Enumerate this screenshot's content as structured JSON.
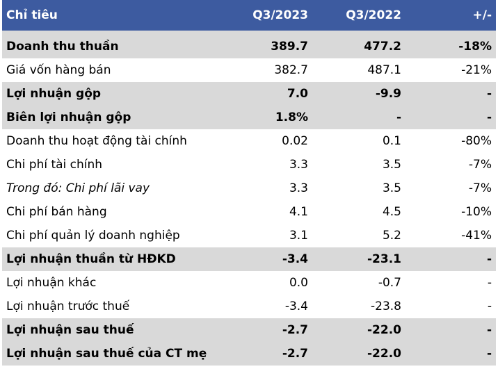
{
  "header": {
    "label": "Chỉ tiêu",
    "col1": "Q3/2023",
    "col2": "Q3/2022",
    "col3": "+/-"
  },
  "rows": [
    {
      "label": "Doanh thu thuần",
      "v1": "389.7",
      "v2": "477.2",
      "v3": "-18%",
      "bold": true,
      "shade": true,
      "italic": false
    },
    {
      "label": "Giá vốn hàng bán",
      "v1": "382.7",
      "v2": "487.1",
      "v3": "-21%",
      "bold": false,
      "shade": false,
      "italic": false
    },
    {
      "label": "Lợi nhuận gộp",
      "v1": "7.0",
      "v2": "-9.9",
      "v3": "-",
      "bold": true,
      "shade": true,
      "italic": false
    },
    {
      "label": "Biên lợi nhuận gộp",
      "v1": "1.8%",
      "v2": "-",
      "v3": "-",
      "bold": true,
      "shade": true,
      "italic": false
    },
    {
      "label": "Doanh thu hoạt động tài chính",
      "v1": "0.02",
      "v2": "0.1",
      "v3": "-80%",
      "bold": false,
      "shade": false,
      "italic": false
    },
    {
      "label": "Chi phí tài chính",
      "v1": "3.3",
      "v2": "3.5",
      "v3": "-7%",
      "bold": false,
      "shade": false,
      "italic": false
    },
    {
      "label": "Trong đó: Chi phí lãi vay",
      "v1": "3.3",
      "v2": "3.5",
      "v3": "-7%",
      "bold": false,
      "shade": false,
      "italic": true
    },
    {
      "label": "Chi phí bán hàng",
      "v1": "4.1",
      "v2": "4.5",
      "v3": "-10%",
      "bold": false,
      "shade": false,
      "italic": false
    },
    {
      "label": "Chi phí quản lý doanh nghiệp",
      "v1": "3.1",
      "v2": "5.2",
      "v3": "-41%",
      "bold": false,
      "shade": false,
      "italic": false
    },
    {
      "label": "Lợi nhuận thuần từ HĐKD",
      "v1": "-3.4",
      "v2": "-23.1",
      "v3": "-",
      "bold": true,
      "shade": true,
      "italic": false
    },
    {
      "label": "Lợi nhuận khác",
      "v1": "0.0",
      "v2": "-0.7",
      "v3": "-",
      "bold": false,
      "shade": false,
      "italic": false
    },
    {
      "label": "Lợi nhuận trước thuế",
      "v1": "-3.4",
      "v2": "-23.8",
      "v3": "-",
      "bold": false,
      "shade": false,
      "italic": false
    },
    {
      "label": "Lợi nhuận sau thuế",
      "v1": "-2.7",
      "v2": "-22.0",
      "v3": "-",
      "bold": true,
      "shade": true,
      "italic": false
    },
    {
      "label": "Lợi nhuận sau thuế của CT mẹ",
      "v1": "-2.7",
      "v2": "-22.0",
      "v3": "-",
      "bold": true,
      "shade": true,
      "italic": false
    }
  ]
}
